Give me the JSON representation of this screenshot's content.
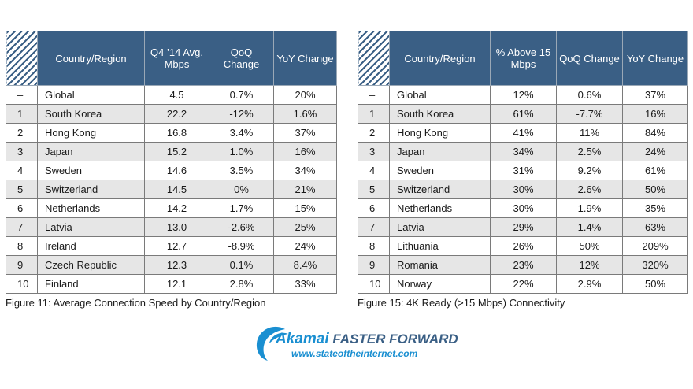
{
  "table1": {
    "headers": [
      "",
      "Country/Region",
      "Q4 ’14 Avg. Mbps",
      "QoQ Change",
      "YoY Change"
    ],
    "rows": [
      [
        "–",
        "Global",
        "4.5",
        "0.7%",
        "20%"
      ],
      [
        "1",
        "South Korea",
        "22.2",
        "-12%",
        "1.6%"
      ],
      [
        "2",
        "Hong Kong",
        "16.8",
        "3.4%",
        "37%"
      ],
      [
        "3",
        "Japan",
        "15.2",
        "1.0%",
        "16%"
      ],
      [
        "4",
        "Sweden",
        "14.6",
        "3.5%",
        "34%"
      ],
      [
        "5",
        "Switzerland",
        "14.5",
        "0%",
        "21%"
      ],
      [
        "6",
        "Netherlands",
        "14.2",
        "1.7%",
        "15%"
      ],
      [
        "7",
        "Latvia",
        "13.0",
        "-2.6%",
        "25%"
      ],
      [
        "8",
        "Ireland",
        "12.7",
        "-8.9%",
        "24%"
      ],
      [
        "9",
        "Czech Republic",
        "12.3",
        "0.1%",
        "8.4%"
      ],
      [
        "10",
        "Finland",
        "12.1",
        "2.8%",
        "33%"
      ]
    ],
    "caption": "Figure 11: Average Connection Speed by Country/Region"
  },
  "table2": {
    "headers": [
      "",
      "Country/Region",
      "% Above 15 Mbps",
      "QoQ Change",
      "YoY Change"
    ],
    "rows": [
      [
        "–",
        "Global",
        "12%",
        "0.6%",
        "37%"
      ],
      [
        "1",
        "South Korea",
        "61%",
        "-7.7%",
        "16%"
      ],
      [
        "2",
        "Hong Kong",
        "41%",
        "11%",
        "84%"
      ],
      [
        "3",
        "Japan",
        "34%",
        "2.5%",
        "24%"
      ],
      [
        "4",
        "Sweden",
        "31%",
        "9.2%",
        "61%"
      ],
      [
        "5",
        "Switzerland",
        "30%",
        "2.6%",
        "50%"
      ],
      [
        "6",
        "Netherlands",
        "30%",
        "1.9%",
        "35%"
      ],
      [
        "7",
        "Latvia",
        "29%",
        "1.4%",
        "63%"
      ],
      [
        "8",
        "Lithuania",
        "26%",
        "50%",
        "209%"
      ],
      [
        "9",
        "Romania",
        "23%",
        "12%",
        "320%"
      ],
      [
        "10",
        "Norway",
        "22%",
        "2.9%",
        "50%"
      ]
    ],
    "caption": "Figure 15: 4K Ready (>15 Mbps) Connectivity"
  },
  "footer": {
    "brand": "Akamai",
    "tagline": "FASTER FORWARD",
    "url": "www.stateoftheinternet.com",
    "colors": {
      "brand_blue": "#1a8fd1",
      "header_blue": "#3a5f85"
    }
  }
}
